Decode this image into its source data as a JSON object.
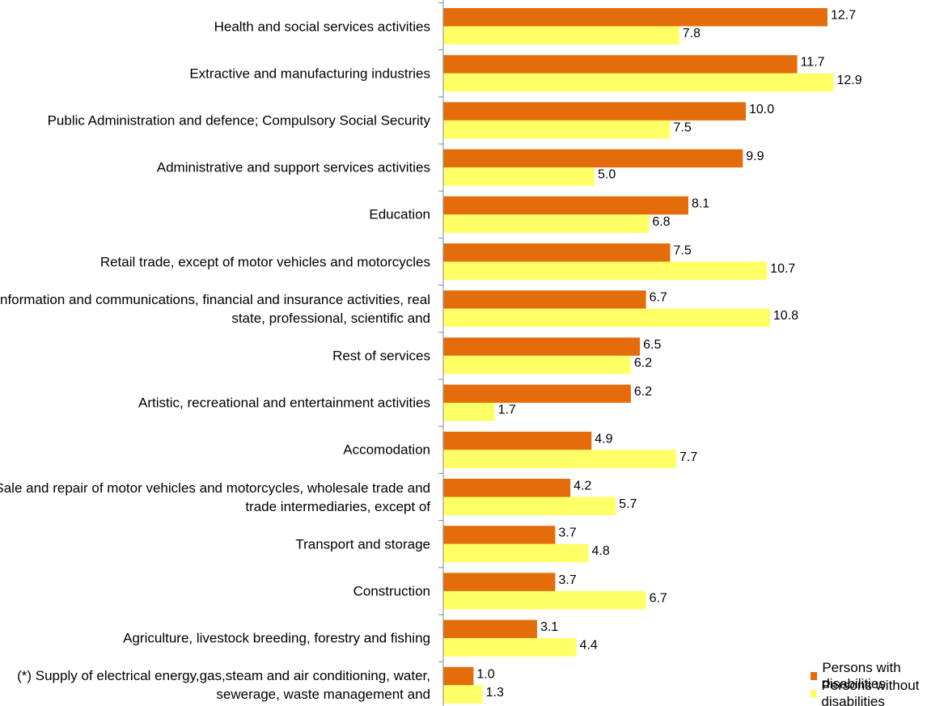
{
  "chart_data": {
    "type": "barh",
    "categories": [
      "Health and social services activities",
      "Extractive and manufacturing industries",
      "Public Administration and defence; Compulsory Social Security",
      "Administrative and support services activities",
      "Education",
      "Retail trade, except of motor vehicles and motorcycles",
      "Information and communications, financial and insurance activities, real state, professional, scientific and",
      "Rest of services",
      "Artistic, recreational and entertainment activities",
      "Accomodation",
      "Sale and repair of motor vehicles and motorcycles, wholesale trade and trade intermediaries, except of",
      "Transport and storage",
      "Construction",
      "Agriculture, livestock breeding, forestry and fishing",
      "(*) Supply of electrical energy,gas,steam and air conditioning, water, sewerage, waste management and"
    ],
    "series": [
      {
        "name": "Persons with disabilities",
        "color": "#e46c0a",
        "values": [
          12.7,
          11.7,
          10.0,
          9.9,
          8.1,
          7.5,
          6.7,
          6.5,
          6.2,
          4.9,
          4.2,
          3.7,
          3.7,
          3.1,
          1.0
        ],
        "value_labels": [
          "12.7",
          "11.7",
          "10.0",
          "9.9",
          "8.1",
          "7.5",
          "6.7",
          "6.5",
          "6.2",
          "4.9",
          "4.2",
          "3.7",
          "3.7",
          "3.1",
          "1.0"
        ]
      },
      {
        "name": "Persons without disabilities",
        "color": "#ffff66",
        "values": [
          7.8,
          12.9,
          7.5,
          5.0,
          6.8,
          10.7,
          10.8,
          6.2,
          1.7,
          7.7,
          5.7,
          4.8,
          6.7,
          4.4,
          1.3
        ],
        "value_labels": [
          "7.8",
          "12.9",
          "7.5",
          "5.0",
          "6.8",
          "10.7",
          "10.8",
          "6.2",
          "1.7",
          "7.7",
          "5.7",
          "4.8",
          "6.7",
          "4.4",
          "1.3"
        ]
      }
    ],
    "legend": "bottom-right"
  }
}
